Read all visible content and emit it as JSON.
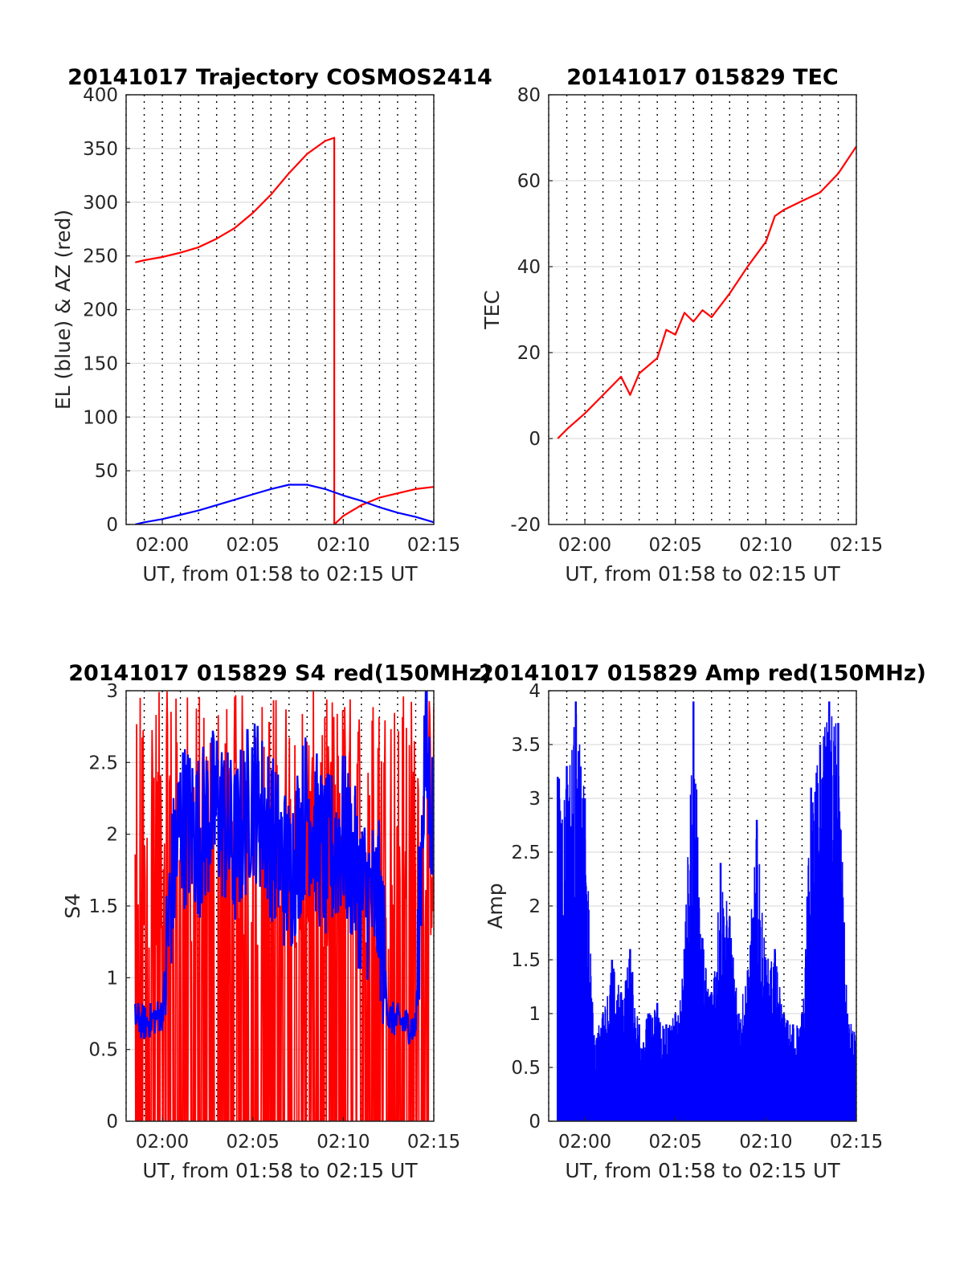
{
  "chart_data": [
    {
      "type": "line",
      "title": "20141017 Trajectory COSMOS2414",
      "xlabel": "UT, from 01:58 to 02:15 UT",
      "ylabel": "EL (blue) & AZ (red)",
      "x_unit": "minutes",
      "xlim": [
        "01:58",
        "02:15"
      ],
      "ylim": [
        0,
        400
      ],
      "xticks": [
        "02:00",
        "02:05",
        "02:10",
        "02:15"
      ],
      "yticks": [
        "0",
        "50",
        "100",
        "150",
        "200",
        "250",
        "300",
        "350",
        "400"
      ],
      "grid": true,
      "series": [
        {
          "color": "#ff0000",
          "x": [
            "01:58:30",
            "01:59",
            "02:00",
            "02:01",
            "02:02",
            "02:03",
            "02:04",
            "02:05",
            "02:06",
            "02:07",
            "02:08",
            "02:09",
            "02:09:30",
            "02:09:30",
            "02:10",
            "02:11",
            "02:12",
            "02:13",
            "02:14",
            "02:15"
          ],
          "values": [
            244,
            246,
            249,
            253,
            258,
            266,
            276,
            290,
            307,
            327,
            345,
            357,
            360,
            0,
            8,
            18,
            25,
            29,
            33,
            35
          ]
        },
        {
          "color": "#0000ff",
          "x": [
            "01:58:30",
            "01:59",
            "02:00",
            "02:01",
            "02:02",
            "02:03",
            "02:04",
            "02:05",
            "02:06",
            "02:07",
            "02:08",
            "02:09",
            "02:10",
            "02:11",
            "02:12",
            "02:13",
            "02:14",
            "02:15"
          ],
          "values": [
            0,
            2,
            5,
            9,
            13,
            18,
            23,
            28,
            33,
            37,
            37,
            33,
            27,
            22,
            16,
            11,
            7,
            2
          ]
        }
      ]
    },
    {
      "type": "line",
      "title": "20141017 015829 TEC",
      "xlabel": "UT, from 01:58 to 02:15 UT",
      "ylabel": "TEC",
      "x_unit": "minutes",
      "xlim": [
        "01:58",
        "02:15"
      ],
      "ylim": [
        -20,
        80
      ],
      "xticks": [
        "02:00",
        "02:05",
        "02:10",
        "02:15"
      ],
      "yticks": [
        "-20",
        "0",
        "20",
        "40",
        "60",
        "80"
      ],
      "grid": true,
      "series": [
        {
          "color": "#ff0000",
          "x": [
            "01:58:30",
            "01:59",
            "02:00",
            "02:01",
            "02:02",
            "02:02:30",
            "02:03",
            "02:04",
            "02:04:30",
            "02:05",
            "02:05:30",
            "02:06",
            "02:06:30",
            "02:07",
            "02:08",
            "02:09",
            "02:10",
            "02:10:30",
            "02:11",
            "02:12",
            "02:13",
            "02:14",
            "02:15"
          ],
          "values": [
            0,
            2,
            6,
            10,
            14,
            10,
            15,
            19,
            25,
            24,
            29,
            27,
            30,
            28,
            34,
            40,
            46,
            52,
            53,
            55,
            57,
            62,
            68
          ]
        }
      ]
    },
    {
      "type": "line",
      "title": "20141017 015829 S4 red(150MHz)",
      "xlabel": "UT, from 01:58 to 02:15 UT",
      "ylabel": "S4",
      "x_unit": "minutes",
      "xlim": [
        "01:58",
        "02:15"
      ],
      "ylim": [
        0,
        3
      ],
      "xticks": [
        "02:00",
        "02:05",
        "02:10",
        "02:15"
      ],
      "yticks": [
        "0",
        "0.5",
        "1",
        "1.5",
        "2",
        "2.5",
        "3"
      ],
      "grid": true,
      "series": [
        {
          "color": "#ff0000",
          "x": [
            "01:58:30",
            "02:00",
            "02:01",
            "02:02",
            "02:03",
            "02:04",
            "02:05",
            "02:06",
            "02:07",
            "02:08",
            "02:09",
            "02:10",
            "02:11",
            "02:12",
            "02:13",
            "02:14",
            "02:15"
          ],
          "values": [
            0,
            3,
            0,
            3,
            0,
            3,
            0,
            3,
            0,
            3,
            0,
            3,
            0,
            3,
            0,
            3,
            0
          ]
        },
        {
          "color": "#0000ff",
          "x": [
            "01:58:30",
            "01:59",
            "02:00",
            "02:00:30",
            "02:01",
            "02:02",
            "02:03",
            "02:04",
            "02:05",
            "02:06",
            "02:07",
            "02:08",
            "02:09",
            "02:10",
            "02:11",
            "02:12",
            "02:12:30",
            "02:13",
            "02:14",
            "02:14:30",
            "02:15"
          ],
          "values": [
            0.72,
            0.68,
            0.75,
            1.6,
            2.1,
            2.0,
            2.2,
            1.9,
            2.3,
            2.0,
            1.7,
            2.2,
            1.8,
            2.0,
            1.6,
            1.5,
            0.72,
            0.7,
            0.65,
            2.6,
            2.0
          ]
        }
      ]
    },
    {
      "type": "line",
      "title": "20141017 015829 Amp red(150MHz)",
      "xlabel": "UT, from 01:58 to 02:15 UT",
      "ylabel": "Amp",
      "x_unit": "minutes",
      "xlim": [
        "01:58",
        "02:15"
      ],
      "ylim": [
        0,
        4
      ],
      "xticks": [
        "02:00",
        "02:05",
        "02:10",
        "02:15"
      ],
      "yticks": [
        "0",
        "0.5",
        "1",
        "1.5",
        "2",
        "2.5",
        "3",
        "3.5",
        "4"
      ],
      "grid": true,
      "series": [
        {
          "color": "#0000ff",
          "peaks": {
            "x": [
              "01:58:30",
              "01:59",
              "01:59:30",
              "02:00",
              "02:00:30",
              "02:01",
              "02:01:30",
              "02:02",
              "02:02:30",
              "02:03",
              "02:03:30",
              "02:04",
              "02:04:30",
              "02:05",
              "02:05:30",
              "02:06",
              "02:06:30",
              "02:07",
              "02:07:30",
              "02:08",
              "02:08:30",
              "02:09",
              "02:09:30",
              "02:10",
              "02:10:30",
              "02:11",
              "02:11:30",
              "02:12",
              "02:12:30",
              "02:13",
              "02:13:30",
              "02:14",
              "02:14:30",
              "02:15"
            ],
            "values": [
              3.2,
              3.3,
              3.9,
              3.0,
              0.8,
              1.0,
              1.5,
              1.2,
              1.6,
              0.9,
              1.0,
              1.1,
              0.9,
              1.0,
              1.6,
              3.9,
              1.7,
              1.2,
              2.4,
              1.9,
              1.0,
              1.4,
              2.8,
              1.5,
              1.6,
              1.0,
              0.9,
              1.0,
              3.1,
              3.5,
              3.9,
              3.7,
              1.0,
              0.8
            ]
          },
          "baseline": 0
        }
      ]
    }
  ]
}
